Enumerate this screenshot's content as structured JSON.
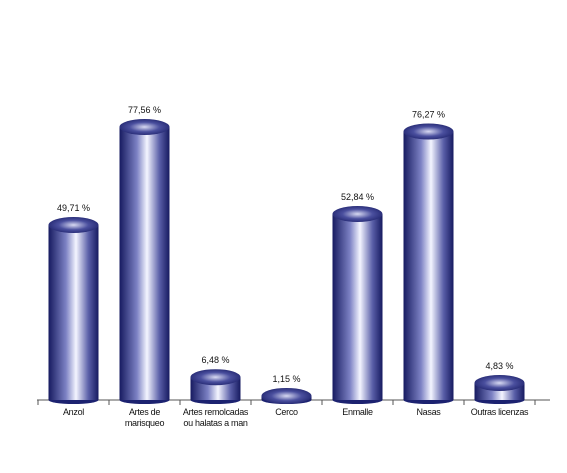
{
  "chart_data": {
    "type": "bar",
    "categories": [
      "Anzol",
      "Artes de marisqueo",
      "Artes remolcadas ou halatas a man",
      "Cerco",
      "Enmalle",
      "Nasas",
      "Outras licenzas"
    ],
    "values": [
      49.71,
      77.56,
      6.48,
      1.15,
      52.84,
      76.27,
      4.83
    ],
    "value_labels": [
      "49,71 %",
      "77,56 %",
      "6,48 %",
      "1,15 %",
      "52,84 %",
      "76,27 %",
      "4,83 %"
    ],
    "color": "#1c2270"
  }
}
